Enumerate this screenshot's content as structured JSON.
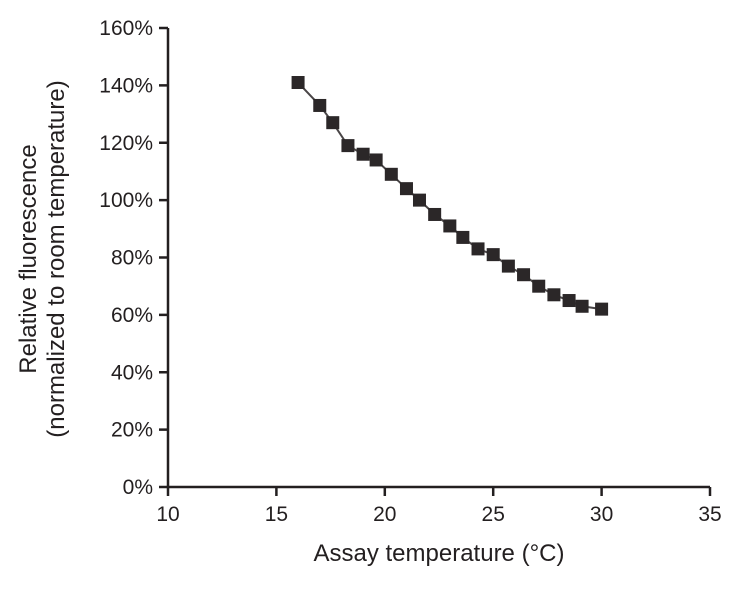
{
  "figure": {
    "background": "#ffffff",
    "axis_color": "#231f20",
    "tick_label_color": "#231f20"
  },
  "chart_data": {
    "type": "scatter",
    "title": "",
    "xlabel": "Assay temperature (°C)",
    "ylabel": "Relative fluorescence (normalized to room temperature)",
    "ylabel_lines": [
      "Relative fluorescence",
      "(normalized to room temperature)"
    ],
    "xlim": [
      10,
      35
    ],
    "ylim": [
      0,
      160
    ],
    "x_ticks": [
      10,
      15,
      20,
      25,
      30,
      35
    ],
    "x_tick_labels": [
      "10",
      "15",
      "20",
      "25",
      "30",
      "35"
    ],
    "y_ticks": [
      0,
      20,
      40,
      60,
      80,
      100,
      120,
      140,
      160
    ],
    "y_tick_labels": [
      "0%",
      "20%",
      "40%",
      "60%",
      "80%",
      "100%",
      "120%",
      "140%",
      "160%"
    ],
    "grid": false,
    "legend": null,
    "marker": {
      "shape": "square",
      "size": 13,
      "color": "#2b2728"
    },
    "line": {
      "color": "#4a4647",
      "width": 2
    },
    "points": [
      [
        16.0,
        141
      ],
      [
        17.0,
        133
      ],
      [
        17.6,
        127
      ],
      [
        18.3,
        119
      ],
      [
        19.0,
        116
      ],
      [
        19.6,
        114
      ],
      [
        20.3,
        109
      ],
      [
        21.0,
        104
      ],
      [
        21.6,
        100
      ],
      [
        22.3,
        95
      ],
      [
        23.0,
        91
      ],
      [
        23.6,
        87
      ],
      [
        24.3,
        83
      ],
      [
        25.0,
        81
      ],
      [
        25.7,
        77
      ],
      [
        26.4,
        74
      ],
      [
        27.1,
        70
      ],
      [
        27.8,
        67
      ],
      [
        28.5,
        65
      ],
      [
        29.1,
        63
      ],
      [
        30.0,
        62
      ]
    ]
  }
}
